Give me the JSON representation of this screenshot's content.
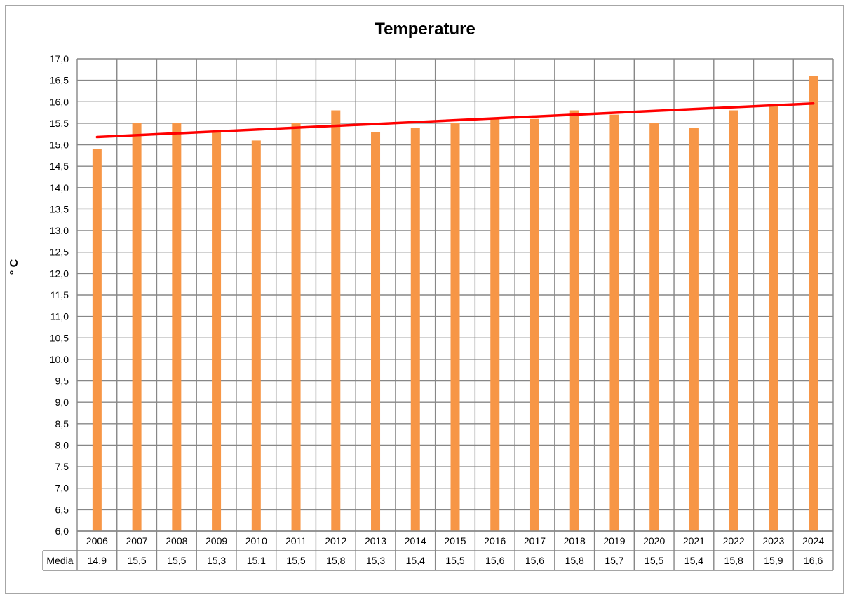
{
  "chart_data": {
    "type": "bar",
    "title": "Temperature",
    "xlabel": "",
    "ylabel": "° C",
    "ylim": [
      6.0,
      17.0
    ],
    "ytick_step": 0.5,
    "grid": true,
    "categories": [
      "2006",
      "2007",
      "2008",
      "2009",
      "2010",
      "2011",
      "2012",
      "2013",
      "2014",
      "2015",
      "2016",
      "2017",
      "2018",
      "2019",
      "2020",
      "2021",
      "2022",
      "2023",
      "2024"
    ],
    "series": [
      {
        "name": "Media",
        "values": [
          14.9,
          15.5,
          15.5,
          15.3,
          15.1,
          15.5,
          15.8,
          15.3,
          15.4,
          15.5,
          15.6,
          15.6,
          15.8,
          15.7,
          15.5,
          15.4,
          15.8,
          15.9,
          16.6
        ],
        "value_labels": [
          "14,9",
          "15,5",
          "15,5",
          "15,3",
          "15,1",
          "15,5",
          "15,8",
          "15,3",
          "15,4",
          "15,5",
          "15,6",
          "15,6",
          "15,8",
          "15,7",
          "15,5",
          "15,4",
          "15,8",
          "15,9",
          "16,6"
        ],
        "color": "#f79646"
      }
    ],
    "trendline": {
      "type": "linear",
      "start": 15.18,
      "end": 15.96,
      "color": "#ff0000"
    },
    "data_table": true
  }
}
